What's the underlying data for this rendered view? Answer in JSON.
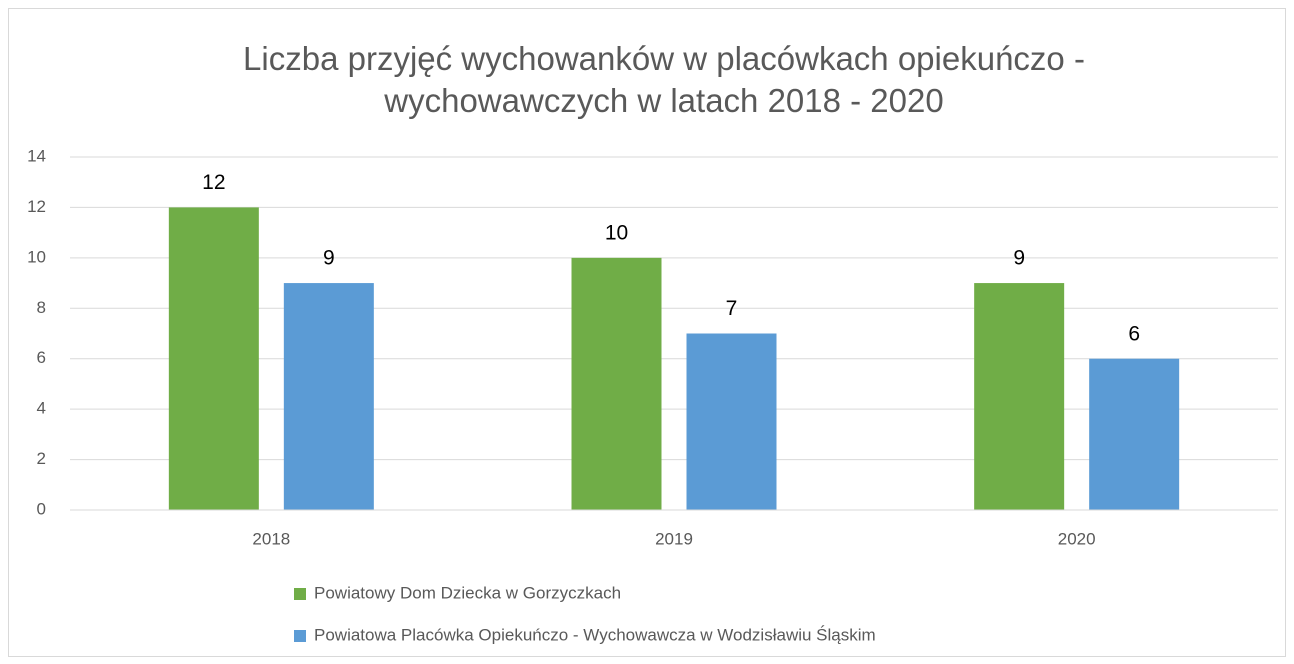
{
  "chart_data": {
    "type": "bar",
    "title": "Liczba przyjęć wychowanków w placówkach opiekuńczo - wychowawczych w latach 2018 - 2020",
    "categories": [
      "2018",
      "2019",
      "2020"
    ],
    "series": [
      {
        "name": "Powiatowy Dom Dziecka w Gorzyczkach",
        "color": "#70ad47",
        "values": [
          12,
          10,
          9
        ]
      },
      {
        "name": "Powiatowa Placówka Opiekuńczo - Wychowawcza w Wodzisławiu Śląskim",
        "color": "#5b9bd5",
        "values": [
          9,
          7,
          6
        ]
      }
    ],
    "ylim": [
      0,
      14
    ],
    "yticks": [
      0,
      2,
      4,
      6,
      8,
      10,
      12,
      14
    ],
    "grid": true,
    "legend": "bottom"
  }
}
